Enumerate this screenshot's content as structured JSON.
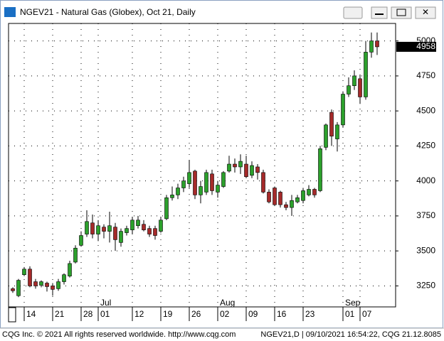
{
  "window": {
    "title": "NGEV21 - Natural Gas (Globex), Oct 21, Daily"
  },
  "footer": {
    "left": "CQG Inc. © 2021 All rights reserved worldwide. http://www.cqg.com",
    "right": "NGEV21,D | 09/10/2021 16:54:22, CQG 21.12.8085"
  },
  "chart_data": {
    "type": "candlestick",
    "categories": [
      null,
      null,
      "14",
      null,
      null,
      null,
      null,
      "21",
      null,
      null,
      null,
      null,
      "28",
      null,
      null,
      "01",
      null,
      null,
      null,
      null,
      null,
      "12",
      null,
      null,
      null,
      null,
      "19",
      null,
      null,
      null,
      null,
      "26",
      null,
      null,
      null,
      null,
      "02",
      null,
      null,
      null,
      null,
      "09",
      null,
      null,
      null,
      null,
      "16",
      null,
      null,
      null,
      null,
      "23",
      null,
      null,
      null,
      null,
      null,
      null,
      "01",
      null,
      null,
      "07",
      null,
      null,
      null
    ],
    "month_labels": [
      null,
      null,
      null,
      null,
      null,
      null,
      null,
      null,
      null,
      null,
      null,
      null,
      null,
      null,
      null,
      "Jul",
      null,
      null,
      null,
      null,
      null,
      null,
      null,
      null,
      null,
      null,
      null,
      null,
      null,
      null,
      null,
      null,
      null,
      null,
      null,
      null,
      "Aug",
      null,
      null,
      null,
      null,
      null,
      null,
      null,
      null,
      null,
      null,
      null,
      null,
      null,
      null,
      null,
      null,
      null,
      null,
      null,
      null,
      null,
      "Sep",
      null,
      null,
      null,
      null,
      null,
      null
    ],
    "open": [
      3230,
      3180,
      3330,
      3370,
      3280,
      3255,
      3270,
      3250,
      3230,
      3280,
      3320,
      3420,
      3540,
      3620,
      3700,
      3620,
      3670,
      3640,
      3670,
      3560,
      3630,
      3650,
      3680,
      3690,
      3660,
      3660,
      3640,
      3730,
      3880,
      3900,
      3950,
      3980,
      4070,
      3900,
      3920,
      4050,
      3920,
      3960,
      4070,
      4120,
      4100,
      4120,
      4040,
      4100,
      4060,
      3920,
      3950,
      3920,
      3830,
      3810,
      3850,
      3860,
      3900,
      3940,
      3930,
      4240,
      4490,
      4300,
      4400,
      4620,
      4680,
      4730,
      4600,
      4920,
      5000
    ],
    "high": [
      3240,
      3300,
      3385,
      3390,
      3300,
      3290,
      3280,
      3270,
      3300,
      3340,
      3430,
      3540,
      3640,
      3790,
      3760,
      3720,
      3690,
      3780,
      3700,
      3660,
      3680,
      3740,
      3750,
      3720,
      3680,
      3680,
      3740,
      3900,
      3960,
      3980,
      4030,
      4150,
      4080,
      4000,
      4080,
      4080,
      4000,
      4070,
      4180,
      4160,
      4190,
      4180,
      4140,
      4120,
      4080,
      3940,
      3960,
      3930,
      3850,
      3900,
      3900,
      3950,
      3970,
      3950,
      4250,
      4410,
      4510,
      4420,
      4640,
      4740,
      4790,
      4760,
      5000,
      5060,
      5060
    ],
    "low": [
      3200,
      3170,
      3320,
      3240,
      3230,
      3240,
      3210,
      3180,
      3215,
      3260,
      3310,
      3410,
      3530,
      3600,
      3590,
      3570,
      3590,
      3560,
      3500,
      3530,
      3610,
      3620,
      3660,
      3640,
      3600,
      3580,
      3630,
      3720,
      3860,
      3870,
      3920,
      3950,
      3870,
      3840,
      3900,
      3900,
      3880,
      3950,
      4060,
      4060,
      4050,
      4020,
      4020,
      4010,
      3910,
      3840,
      3820,
      3810,
      3790,
      3750,
      3840,
      3840,
      3890,
      3880,
      3920,
      4220,
      4250,
      4210,
      4380,
      4600,
      4650,
      4550,
      4580,
      4880,
      4900
    ],
    "close": [
      3215,
      3290,
      3370,
      3250,
      3250,
      3280,
      3245,
      3225,
      3280,
      3330,
      3410,
      3520,
      3610,
      3710,
      3620,
      3680,
      3640,
      3680,
      3580,
      3640,
      3660,
      3720,
      3720,
      3650,
      3620,
      3610,
      3720,
      3880,
      3900,
      3950,
      4000,
      4060,
      3900,
      3960,
      4060,
      3930,
      3970,
      4060,
      4120,
      4100,
      4140,
      4030,
      4110,
      4060,
      3920,
      3850,
      3830,
      3830,
      3810,
      3860,
      3880,
      3930,
      3940,
      3900,
      4230,
      4400,
      4320,
      4400,
      4620,
      4680,
      4750,
      4600,
      4920,
      5000,
      4958
    ],
    "up_color": "#2ca02c",
    "down_color": "#a52a2a",
    "ylim": [
      3100,
      5125
    ],
    "yticks": [
      3250,
      3500,
      3750,
      4000,
      4250,
      4500,
      4750,
      5000
    ],
    "grid": true
  }
}
